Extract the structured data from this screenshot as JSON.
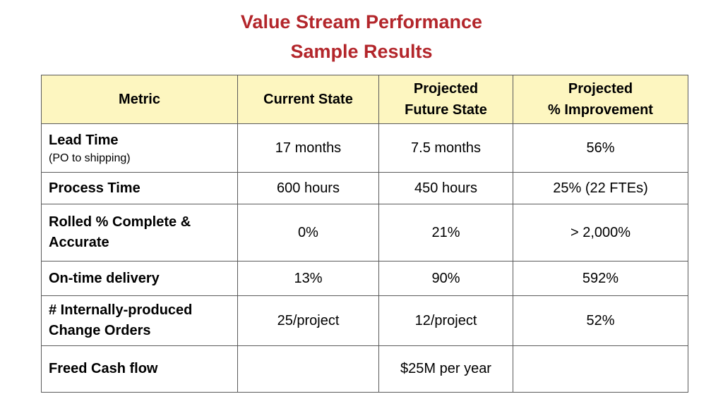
{
  "slide": {
    "title_line1": "Value Stream Performance",
    "title_line2": "Sample Results",
    "accent_color": "#b3262b",
    "header_bg": "#fdf6c0"
  },
  "table": {
    "headers": {
      "metric": "Metric",
      "current": "Current State",
      "future_line1": "Projected",
      "future_line2": "Future State",
      "improvement_line1": "Projected",
      "improvement_line2": "% Improvement"
    },
    "rows": [
      {
        "metric": "Lead Time",
        "metric_sub": "(PO to shipping)",
        "current": "17 months",
        "future": "7.5 months",
        "improvement": "56%"
      },
      {
        "metric": "Process Time",
        "current": "600 hours",
        "future": "450 hours",
        "improvement": "25% (22 FTEs)"
      },
      {
        "metric_line1": "Rolled % Complete &",
        "metric_line2": "Accurate",
        "current": "0%",
        "future": "21%",
        "improvement": "> 2,000%"
      },
      {
        "metric": "On-time delivery",
        "current": "13%",
        "future": "90%",
        "improvement": "592%"
      },
      {
        "metric_line1": "# Internally-produced",
        "metric_line2": "Change Orders",
        "current": "25/project",
        "future": "12/project",
        "improvement": "52%"
      },
      {
        "metric": "Freed Cash flow",
        "current": "",
        "future": "$25M per year",
        "improvement": ""
      }
    ]
  }
}
